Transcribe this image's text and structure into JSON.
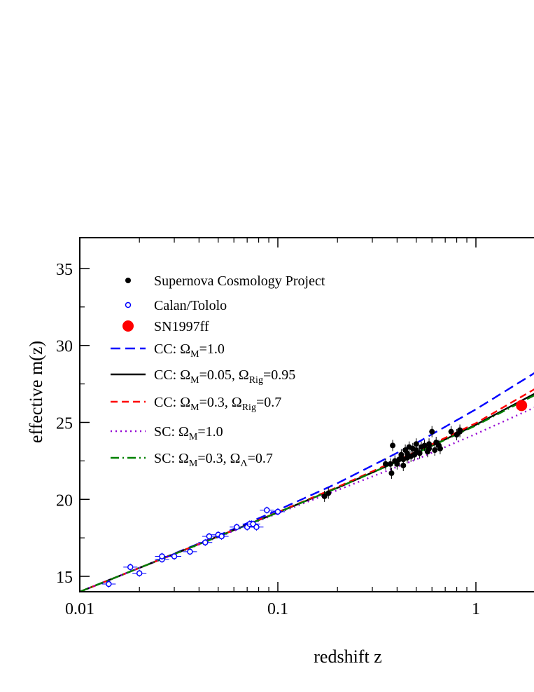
{
  "chart_data": {
    "type": "scatter",
    "title": "",
    "xlabel": "redshift z",
    "ylabel": "effective  m(z)",
    "x_scale": "log",
    "xlim": [
      0.01,
      2.0
    ],
    "ylim": [
      14,
      37
    ],
    "x_ticks": [
      {
        "value": 0.01,
        "label": "0.01"
      },
      {
        "value": 0.1,
        "label": "0.1"
      },
      {
        "value": 1,
        "label": "1"
      }
    ],
    "y_ticks": [
      {
        "value": 15,
        "label": "15"
      },
      {
        "value": 20,
        "label": "20"
      },
      {
        "value": 25,
        "label": "25"
      },
      {
        "value": 30,
        "label": "30"
      },
      {
        "value": 35,
        "label": "35"
      }
    ],
    "legend_position": "top-left",
    "points": [
      {
        "name": "Supernova Cosmology Project",
        "marker": "filled-circle",
        "color": "#000000",
        "data": [
          [
            0.172,
            20.2
          ],
          [
            0.18,
            20.4
          ],
          [
            0.35,
            22.3
          ],
          [
            0.37,
            22.3
          ],
          [
            0.375,
            21.7
          ],
          [
            0.38,
            23.5
          ],
          [
            0.39,
            22.5
          ],
          [
            0.4,
            22.3
          ],
          [
            0.41,
            22.6
          ],
          [
            0.42,
            22.9
          ],
          [
            0.43,
            22.2
          ],
          [
            0.43,
            22.6
          ],
          [
            0.44,
            23.2
          ],
          [
            0.45,
            22.7
          ],
          [
            0.45,
            23.0
          ],
          [
            0.46,
            23.4
          ],
          [
            0.47,
            22.8
          ],
          [
            0.48,
            23.3
          ],
          [
            0.49,
            22.9
          ],
          [
            0.5,
            23.2
          ],
          [
            0.5,
            23.6
          ],
          [
            0.52,
            23.0
          ],
          [
            0.53,
            23.4
          ],
          [
            0.55,
            23.5
          ],
          [
            0.57,
            23.1
          ],
          [
            0.58,
            23.3
          ],
          [
            0.58,
            23.6
          ],
          [
            0.6,
            24.4
          ],
          [
            0.62,
            23.2
          ],
          [
            0.63,
            23.7
          ],
          [
            0.65,
            23.5
          ],
          [
            0.66,
            23.3
          ],
          [
            0.75,
            24.4
          ],
          [
            0.8,
            24.2
          ],
          [
            0.83,
            24.5
          ],
          [
            0.83,
            24.4
          ]
        ]
      },
      {
        "name": "Calan/Tololo",
        "marker": "open-circle",
        "color": "#0000ff",
        "data": [
          [
            0.014,
            14.5
          ],
          [
            0.018,
            15.6
          ],
          [
            0.02,
            15.2
          ],
          [
            0.026,
            16.1
          ],
          [
            0.026,
            16.3
          ],
          [
            0.03,
            16.3
          ],
          [
            0.036,
            16.6
          ],
          [
            0.043,
            17.2
          ],
          [
            0.045,
            17.6
          ],
          [
            0.05,
            17.7
          ],
          [
            0.052,
            17.6
          ],
          [
            0.062,
            18.2
          ],
          [
            0.07,
            18.2
          ],
          [
            0.072,
            18.4
          ],
          [
            0.075,
            18.4
          ],
          [
            0.078,
            18.2
          ],
          [
            0.088,
            19.3
          ],
          [
            0.1,
            19.2
          ]
        ]
      },
      {
        "name": "SN1997ff",
        "marker": "big-filled-circle",
        "color": "#ff0000",
        "data": [
          [
            1.7,
            26.1
          ]
        ]
      }
    ],
    "lines": [
      {
        "label_pre": "CC: Ω",
        "sub1": "M",
        "mid": "=1.0",
        "sub2": "",
        "post": "",
        "color": "#0000ff",
        "dash": "14,7",
        "width": 2.4,
        "data": [
          [
            0.01,
            14.0
          ],
          [
            0.02,
            15.55
          ],
          [
            0.05,
            17.65
          ],
          [
            0.1,
            19.3
          ],
          [
            0.2,
            21.05
          ],
          [
            0.5,
            23.65
          ],
          [
            1.0,
            25.85
          ],
          [
            2.0,
            28.25
          ]
        ]
      },
      {
        "label_pre": "CC: Ω",
        "sub1": "M",
        "mid": "=0.05, Ω",
        "sub2": "Rig",
        "post": "=0.95",
        "color": "#000000",
        "dash": "",
        "width": 2.4,
        "data": [
          [
            0.01,
            14.0
          ],
          [
            0.02,
            15.55
          ],
          [
            0.05,
            17.6
          ],
          [
            0.1,
            19.15
          ],
          [
            0.2,
            20.75
          ],
          [
            0.5,
            23.0
          ],
          [
            1.0,
            24.85
          ],
          [
            2.0,
            26.9
          ]
        ]
      },
      {
        "label_pre": "CC: Ω",
        "sub1": "M",
        "mid": "=0.3, Ω",
        "sub2": "Rig",
        "post": "=0.7",
        "color": "#ff0000",
        "dash": "10,6",
        "width": 2.4,
        "data": [
          [
            0.01,
            14.0
          ],
          [
            0.02,
            15.55
          ],
          [
            0.05,
            17.6
          ],
          [
            0.1,
            19.17
          ],
          [
            0.2,
            20.8
          ],
          [
            0.5,
            23.1
          ],
          [
            1.0,
            24.95
          ],
          [
            2.0,
            27.2
          ]
        ]
      },
      {
        "label_pre": "SC: Ω",
        "sub1": "M",
        "mid": "=1.0",
        "sub2": "",
        "post": "",
        "color": "#9400d3",
        "dash": "2,5",
        "width": 2.4,
        "data": [
          [
            0.01,
            14.0
          ],
          [
            0.02,
            15.55
          ],
          [
            0.05,
            17.55
          ],
          [
            0.1,
            19.1
          ],
          [
            0.2,
            20.6
          ],
          [
            0.5,
            22.6
          ],
          [
            1.0,
            24.25
          ],
          [
            2.0,
            26.0
          ]
        ]
      },
      {
        "label_pre": "SC: Ω",
        "sub1": "M",
        "mid": "=0.3, Ω",
        "sub2": "Λ",
        "post": "=0.7",
        "color": "#008000",
        "dash": "12,5,2,5",
        "width": 2.4,
        "data": [
          [
            0.01,
            14.0
          ],
          [
            0.02,
            15.55
          ],
          [
            0.05,
            17.58
          ],
          [
            0.1,
            19.15
          ],
          [
            0.2,
            20.75
          ],
          [
            0.5,
            23.0
          ],
          [
            1.0,
            24.8
          ],
          [
            2.0,
            26.8
          ]
        ]
      }
    ]
  }
}
